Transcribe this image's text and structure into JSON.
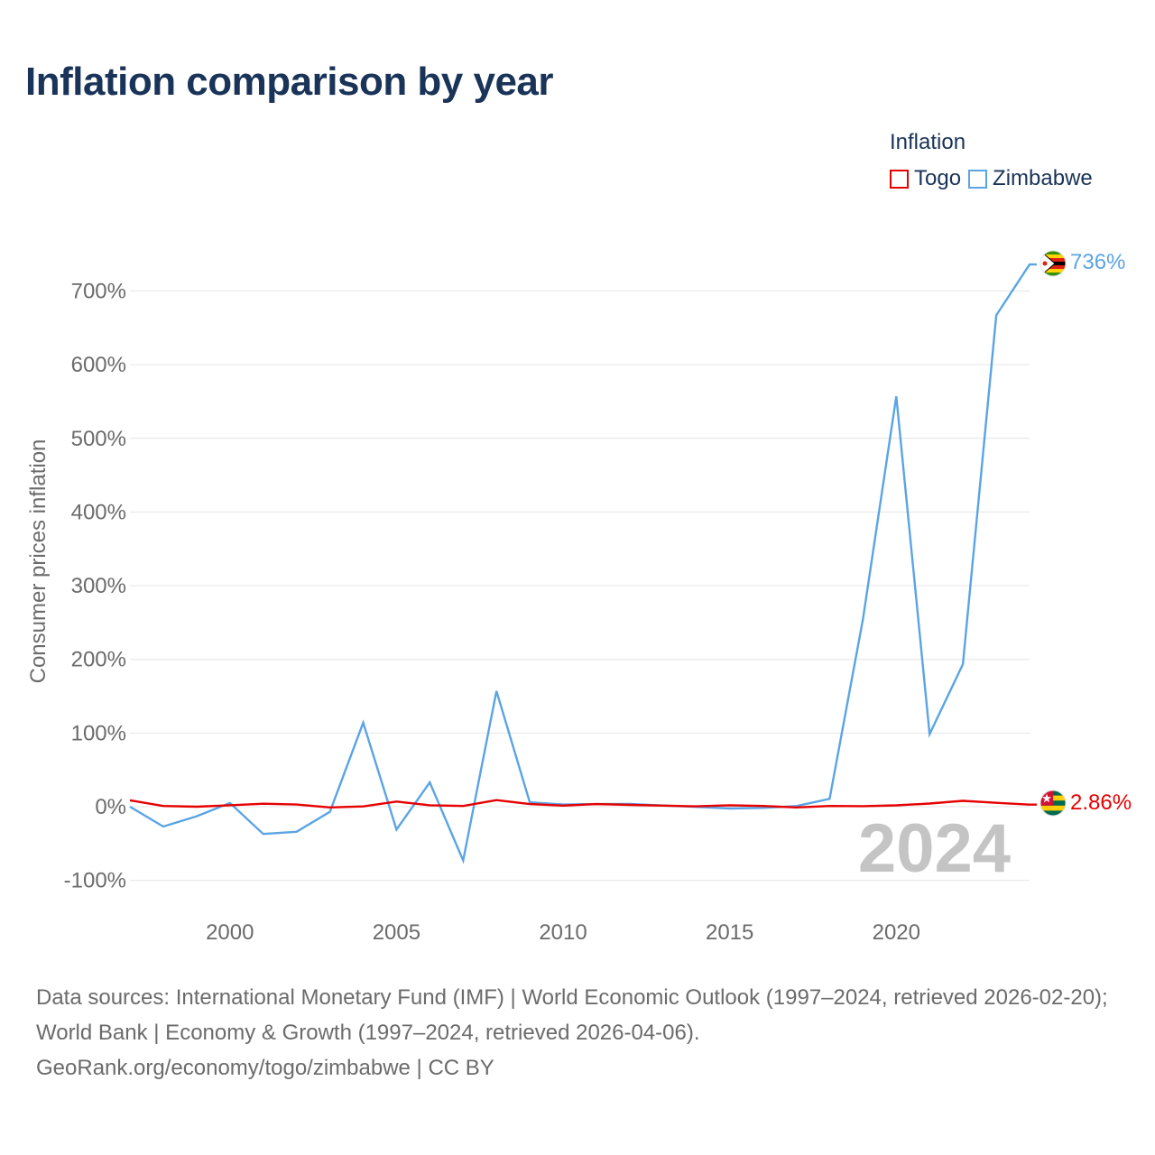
{
  "title": "Inflation comparison by year",
  "legend": {
    "title": "Inflation",
    "items": [
      {
        "label": "Togo",
        "color": "#e60000"
      },
      {
        "label": "Zimbabwe",
        "color": "#5aa4e4"
      }
    ]
  },
  "chart_data": {
    "type": "line",
    "title": "Inflation comparison by year",
    "xlabel": "",
    "ylabel": "Consumer prices inflation",
    "x": [
      1997,
      1998,
      1999,
      2000,
      2001,
      2002,
      2003,
      2004,
      2005,
      2006,
      2007,
      2008,
      2009,
      2010,
      2011,
      2012,
      2013,
      2014,
      2015,
      2016,
      2017,
      2018,
      2019,
      2020,
      2021,
      2022,
      2023,
      2024
    ],
    "xlim": [
      1997,
      2024
    ],
    "xticks": [
      2000,
      2005,
      2010,
      2015,
      2020
    ],
    "ylim": [
      -100,
      736
    ],
    "yticks": [
      -100,
      0,
      100,
      200,
      300,
      400,
      500,
      600,
      700
    ],
    "ytick_labels": [
      "-100%",
      "0%",
      "100%",
      "200%",
      "300%",
      "400%",
      "500%",
      "600%",
      "700%"
    ],
    "grid": true,
    "year_watermark": "2024",
    "series": [
      {
        "name": "Togo",
        "color": "#e60000",
        "values": [
          8.7,
          1.0,
          0.0,
          2.0,
          4.0,
          3.0,
          -1.0,
          0.4,
          7.0,
          2.0,
          1.0,
          9.0,
          3.5,
          1.5,
          3.5,
          2.5,
          1.5,
          0.5,
          2.0,
          1.0,
          -1.0,
          1.0,
          0.7,
          1.8,
          4.3,
          8.0,
          5.3,
          2.86
        ],
        "end_label": "2.86%"
      },
      {
        "name": "Zimbabwe",
        "color": "#5aa4e4",
        "values": [
          0.0,
          -27.0,
          -13.0,
          5.0,
          -37.0,
          -34.0,
          -7.0,
          114.0,
          -31.0,
          33.0,
          -73.0,
          157.0,
          6.0,
          3.0,
          3.5,
          3.7,
          1.6,
          -0.2,
          -2.4,
          -1.6,
          0.9,
          10.6,
          255.0,
          557.0,
          98.5,
          193.4,
          667.0,
          736.0
        ],
        "end_label": "736%"
      }
    ]
  },
  "footer": {
    "sources": "Data sources: International Monetary Fund (IMF) | World Economic Outlook (1997–2024, retrieved 2026-02-20); World Bank | Economy & Growth (1997–2024, retrieved 2026-04-06).",
    "credit": "GeoRank.org/economy/togo/zimbabwe | CC BY"
  }
}
